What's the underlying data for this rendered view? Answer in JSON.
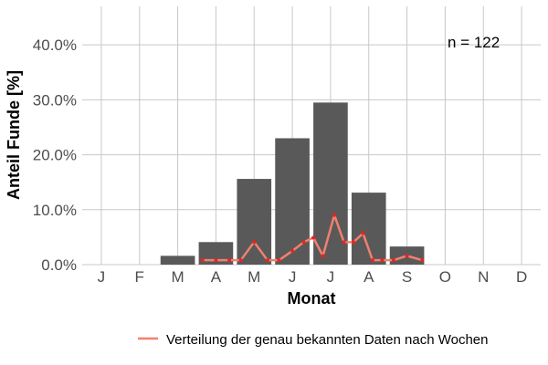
{
  "chart_data": {
    "type": "bar",
    "xlabel": "Monat",
    "ylabel": "Anteil Funde [%]",
    "annotation": "n = 122",
    "categories": [
      "J",
      "F",
      "M",
      "A",
      "M",
      "J",
      "J",
      "A",
      "S",
      "O",
      "N",
      "D"
    ],
    "values": [
      0,
      0,
      1.6,
      4.1,
      15.6,
      23.0,
      29.5,
      13.1,
      3.3,
      0,
      0,
      0
    ],
    "ylim": [
      0,
      47
    ],
    "yticks": [
      0,
      10,
      20,
      30,
      40
    ],
    "ytick_labels": [
      "0.0%",
      "10.0%",
      "20.0%",
      "30.0%",
      "40.0%"
    ],
    "grid": true,
    "bar_color": "#595959",
    "line_series": {
      "name": "Verteilung der genau bekannten Daten nach Wochen",
      "color": "#f08070",
      "marker_color": "#e8241f",
      "x": [
        2.65,
        3.0,
        3.35,
        3.65,
        4.0,
        4.35,
        4.65,
        5.0,
        5.3,
        5.55,
        5.8,
        6.1,
        6.35,
        6.6,
        6.85,
        7.1,
        7.35,
        7.65,
        8.0,
        8.4
      ],
      "y": [
        0.8,
        0.8,
        0.8,
        0.8,
        4.1,
        0.8,
        0.8,
        2.5,
        4.1,
        4.9,
        1.6,
        9.0,
        4.1,
        4.1,
        5.7,
        0.8,
        0.8,
        0.8,
        1.6,
        0.8
      ]
    },
    "legend_position": "bottom"
  }
}
